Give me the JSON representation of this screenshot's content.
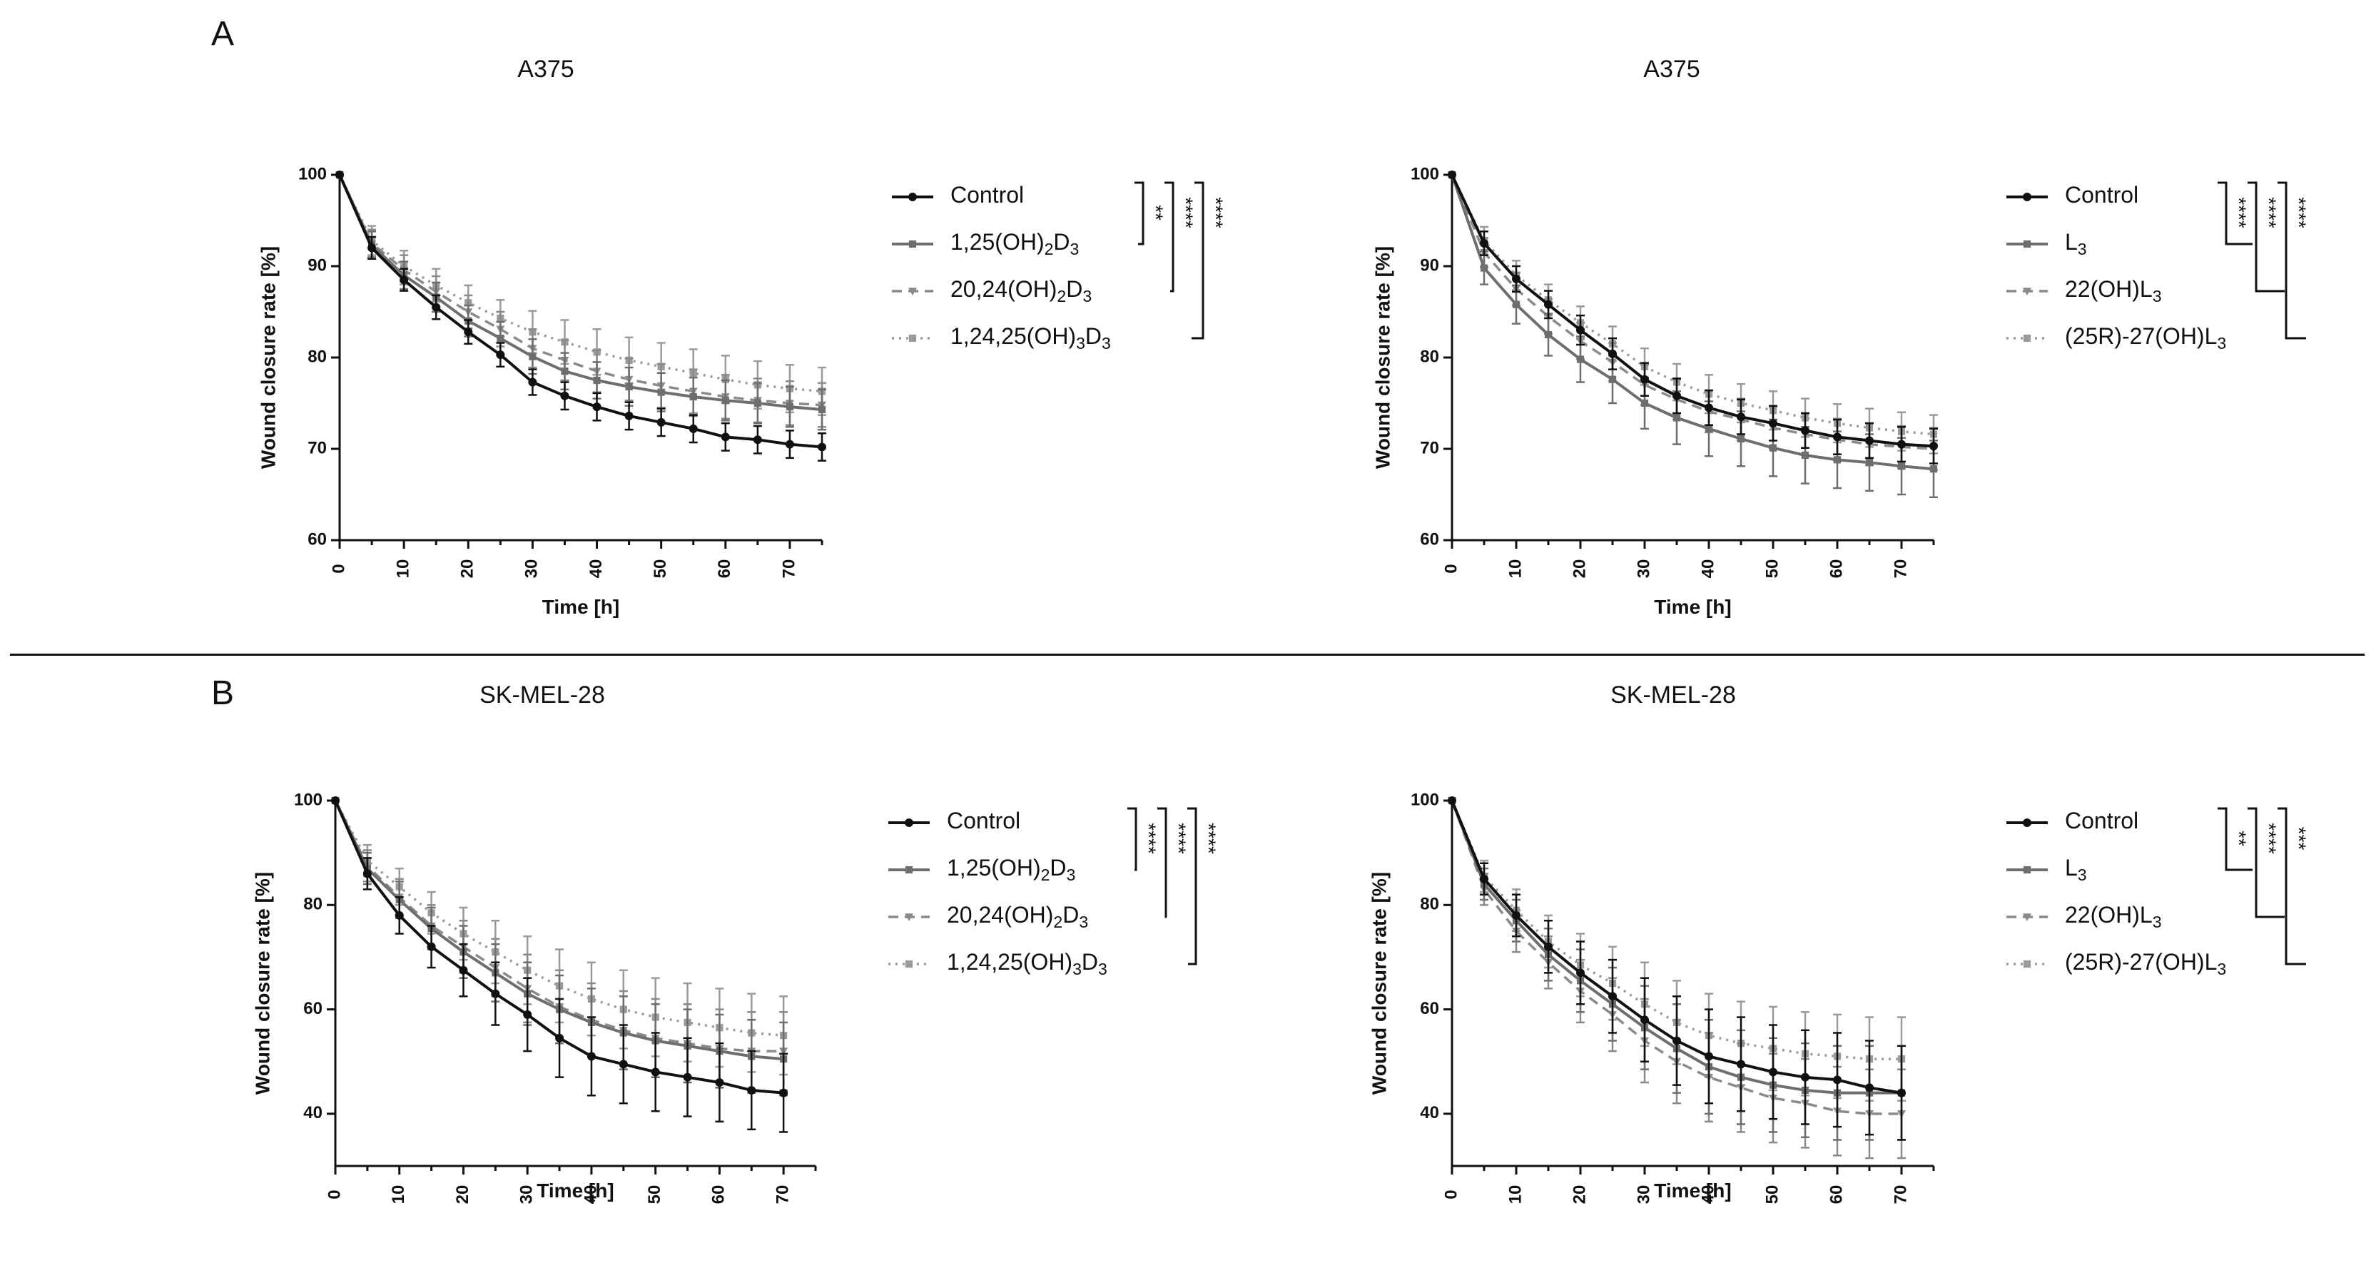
{
  "panels": [
    {
      "letter": "A"
    },
    {
      "letter": "B"
    }
  ],
  "colors": {
    "control": "#111111",
    "treatment": "#6e6e6e",
    "treatment_light": "#8a8a8a",
    "treatment_dotted": "#9a9a9a"
  },
  "chart_data": [
    {
      "type": "line",
      "title": "A375",
      "xlabel": "Time [h]",
      "ylabel": "Wound closure rate [%]",
      "xlim": [
        0,
        75
      ],
      "ylim": [
        60,
        100
      ],
      "x_ticks": [
        0,
        10,
        20,
        30,
        40,
        50,
        60,
        70
      ],
      "y_ticks": [
        60,
        70,
        80,
        90,
        100
      ],
      "grid": false,
      "legend_position": "right",
      "x": [
        0,
        5,
        10,
        15,
        20,
        25,
        30,
        35,
        40,
        45,
        50,
        55,
        60,
        65,
        70,
        75
      ],
      "series": [
        {
          "name": "Control",
          "style": "solid-dark",
          "values": [
            100,
            92,
            88.5,
            85.5,
            82.8,
            80.3,
            77.3,
            75.8,
            74.6,
            73.6,
            72.9,
            72.2,
            71.3,
            71,
            70.5,
            70.2
          ],
          "error": [
            0,
            1.2,
            1.2,
            1.3,
            1.3,
            1.3,
            1.4,
            1.5,
            1.5,
            1.5,
            1.5,
            1.5,
            1.5,
            1.5,
            1.5,
            1.5
          ]
        },
        {
          "name": "1,25(OH)2D3",
          "style": "solid-light",
          "values": [
            100,
            92.3,
            89,
            86.6,
            84,
            82.1,
            80.1,
            78.5,
            77.5,
            76.8,
            76.2,
            75.7,
            75.3,
            75,
            74.6,
            74.3
          ],
          "error": [
            0,
            1.5,
            1.5,
            1.6,
            1.7,
            1.8,
            1.9,
            2,
            2,
            2.1,
            2.1,
            2.1,
            2.2,
            2.2,
            2.2,
            2.2
          ]
        },
        {
          "name": "20,24(OH)2D3",
          "style": "dashed",
          "values": [
            100,
            92.5,
            89.6,
            87.2,
            85,
            83.1,
            81,
            79.7,
            78.5,
            77.6,
            76.9,
            76.3,
            75.7,
            75.3,
            75,
            74.8
          ],
          "error": [
            0,
            1.5,
            1.6,
            1.7,
            1.8,
            1.9,
            2.1,
            2.2,
            2.3,
            2.3,
            2.4,
            2.4,
            2.4,
            2.4,
            2.4,
            2.4
          ]
        },
        {
          "name": "1,24,25(OH)3D3",
          "style": "dotted",
          "values": [
            100,
            92.8,
            90,
            87.9,
            86,
            84.3,
            82.8,
            81.7,
            80.6,
            79.7,
            79,
            78.3,
            77.6,
            77,
            76.6,
            76.3
          ],
          "error": [
            0,
            1.6,
            1.7,
            1.8,
            1.9,
            2,
            2.3,
            2.4,
            2.5,
            2.5,
            2.6,
            2.6,
            2.6,
            2.6,
            2.6,
            2.6
          ]
        }
      ],
      "significance": [
        "**",
        "****",
        "****"
      ]
    },
    {
      "type": "line",
      "title": "A375",
      "xlabel": "Time [h]",
      "ylabel": "Wound closure rate [%]",
      "xlim": [
        0,
        75
      ],
      "ylim": [
        60,
        100
      ],
      "x_ticks": [
        0,
        10,
        20,
        30,
        40,
        50,
        60,
        70
      ],
      "y_ticks": [
        60,
        70,
        80,
        90,
        100
      ],
      "grid": false,
      "legend_position": "right",
      "x": [
        0,
        5,
        10,
        15,
        20,
        25,
        30,
        35,
        40,
        45,
        50,
        55,
        60,
        65,
        70,
        75
      ],
      "series": [
        {
          "name": "Control",
          "style": "solid-dark",
          "values": [
            100,
            92.5,
            88.6,
            85.8,
            83,
            80.4,
            77.6,
            75.8,
            74.5,
            73.5,
            72.8,
            72,
            71.3,
            70.9,
            70.5,
            70.3
          ],
          "error": [
            0,
            1.3,
            1.4,
            1.5,
            1.6,
            1.7,
            1.8,
            1.9,
            1.9,
            1.9,
            1.9,
            1.9,
            1.9,
            1.9,
            1.9,
            1.9
          ]
        },
        {
          "name": "L3",
          "style": "solid-light",
          "values": [
            100,
            89.8,
            85.8,
            82.5,
            79.8,
            77.6,
            75,
            73.4,
            72.2,
            71.1,
            70.1,
            69.3,
            68.8,
            68.5,
            68.1,
            67.8
          ],
          "error": [
            0,
            1.8,
            2.1,
            2.3,
            2.5,
            2.6,
            2.8,
            2.9,
            3,
            3,
            3.1,
            3.1,
            3.1,
            3.1,
            3.1,
            3.1
          ]
        },
        {
          "name": "22(OH)L3",
          "style": "dashed",
          "values": [
            100,
            91.5,
            87.5,
            84.5,
            81.8,
            79.5,
            77,
            75.4,
            74.1,
            73.2,
            72.3,
            71.6,
            71,
            70.5,
            70.2,
            70
          ],
          "error": [
            0,
            1.6,
            1.8,
            1.9,
            2,
            2.1,
            2.2,
            2.2,
            2.3,
            2.3,
            2.3,
            2.3,
            2.3,
            2.3,
            2.3,
            2.3
          ]
        },
        {
          "name": "(25R)-27(OH)L3",
          "style": "dotted",
          "values": [
            100,
            92.8,
            89,
            86.3,
            83.8,
            81.5,
            79,
            77.3,
            76,
            75,
            74.2,
            73.4,
            72.8,
            72.3,
            71.9,
            71.6
          ],
          "error": [
            0,
            1.5,
            1.6,
            1.7,
            1.8,
            1.9,
            2,
            2,
            2.1,
            2.1,
            2.1,
            2.1,
            2.1,
            2.1,
            2.1,
            2.1
          ]
        }
      ],
      "significance": [
        "****",
        "****",
        "****"
      ]
    },
    {
      "type": "line",
      "title": "SK-MEL-28",
      "xlabel": "Time [h]",
      "ylabel": "Wound closure rate [%]",
      "xlim": [
        0,
        75
      ],
      "ylim": [
        30,
        100
      ],
      "x_ticks": [
        0,
        10,
        20,
        30,
        40,
        50,
        60,
        70
      ],
      "y_ticks": [
        40,
        60,
        80,
        100
      ],
      "grid": false,
      "legend_position": "right",
      "x": [
        0,
        5,
        10,
        15,
        20,
        25,
        30,
        35,
        40,
        45,
        50,
        55,
        60,
        65,
        70
      ],
      "series": [
        {
          "name": "Control",
          "style": "solid-dark",
          "values": [
            100,
            86,
            78,
            72,
            67.5,
            63,
            59,
            54.5,
            51,
            49.5,
            48,
            47,
            46,
            44.5,
            44
          ],
          "error": [
            0,
            3,
            3.5,
            4,
            5,
            6,
            7,
            7.5,
            7.5,
            7.5,
            7.5,
            7.5,
            7.5,
            7.5,
            7.5
          ]
        },
        {
          "name": "1,25(OH)2D3",
          "style": "solid-light",
          "values": [
            100,
            87,
            81,
            75.5,
            71,
            67,
            63,
            60,
            57.5,
            55.5,
            54,
            53,
            52,
            51,
            50.5
          ],
          "error": [
            0,
            3,
            3.5,
            4,
            5,
            5.5,
            6,
            6.5,
            6.5,
            7,
            7,
            7,
            7,
            7,
            7
          ]
        },
        {
          "name": "20,24(OH)2D3",
          "style": "dashed",
          "values": [
            100,
            87.5,
            81.5,
            76,
            72,
            68,
            64,
            60.5,
            58,
            56,
            54.5,
            53.5,
            52.5,
            52,
            52
          ],
          "error": [
            0,
            3,
            3.5,
            4,
            5,
            5.5,
            6.5,
            7,
            7,
            7.5,
            7.5,
            7.5,
            7.5,
            7.5,
            7.5
          ]
        },
        {
          "name": "1,24,25(OH)3D3",
          "style": "dotted",
          "values": [
            100,
            88.5,
            83.5,
            78.5,
            74.5,
            71,
            67.5,
            64.5,
            62,
            60,
            58.5,
            57.5,
            56.5,
            55.5,
            55
          ],
          "error": [
            0,
            3,
            3.5,
            4,
            5,
            6,
            6.5,
            7,
            7,
            7.5,
            7.5,
            7.5,
            7.5,
            7.5,
            7.5
          ]
        }
      ],
      "significance": [
        "****",
        "****",
        "****"
      ]
    },
    {
      "type": "line",
      "title": "SK-MEL-28",
      "xlabel": "Time [h]",
      "ylabel": "Wound closure rate [%]",
      "xlim": [
        0,
        75
      ],
      "ylim": [
        30,
        100
      ],
      "x_ticks": [
        0,
        10,
        20,
        30,
        40,
        50,
        60,
        70
      ],
      "y_ticks": [
        40,
        60,
        80,
        100
      ],
      "grid": false,
      "legend_position": "right",
      "x": [
        0,
        5,
        10,
        15,
        20,
        25,
        30,
        35,
        40,
        45,
        50,
        55,
        60,
        65,
        70
      ],
      "series": [
        {
          "name": "Control",
          "style": "solid-dark",
          "values": [
            100,
            85,
            78,
            72,
            67,
            62.5,
            58,
            54,
            51,
            49.5,
            48,
            47,
            46.5,
            45,
            44
          ],
          "error": [
            0,
            3,
            4,
            5,
            6,
            7,
            8,
            8.5,
            9,
            9,
            9,
            9,
            9,
            9,
            9
          ]
        },
        {
          "name": "L3",
          "style": "solid-light",
          "values": [
            100,
            84,
            77,
            70.5,
            65.5,
            61,
            56.5,
            52.5,
            49,
            47,
            45.5,
            44.5,
            44,
            44,
            44
          ],
          "error": [
            0,
            3,
            4,
            5,
            6,
            7,
            8,
            8.5,
            9,
            9,
            9,
            9,
            9,
            9,
            9
          ]
        },
        {
          "name": "22(OH)L3",
          "style": "dashed",
          "values": [
            100,
            83,
            75,
            69,
            63.5,
            59,
            54,
            50,
            47,
            45,
            43,
            42,
            40.5,
            40,
            40
          ],
          "error": [
            0,
            3,
            4,
            5,
            6,
            7,
            8,
            8,
            8.5,
            8.5,
            8.5,
            8.5,
            8.5,
            8.5,
            8.5
          ]
        },
        {
          "name": "(25R)-27(OH)L3",
          "style": "dotted",
          "values": [
            100,
            85.5,
            79,
            73,
            68.5,
            65,
            61,
            57.5,
            55,
            53.5,
            52.5,
            51.5,
            51,
            50.5,
            50.5
          ],
          "error": [
            0,
            3,
            4,
            5,
            6,
            7,
            8,
            8,
            8,
            8,
            8,
            8,
            8,
            8,
            8
          ]
        }
      ],
      "significance": [
        "**",
        "****",
        "***"
      ]
    }
  ]
}
